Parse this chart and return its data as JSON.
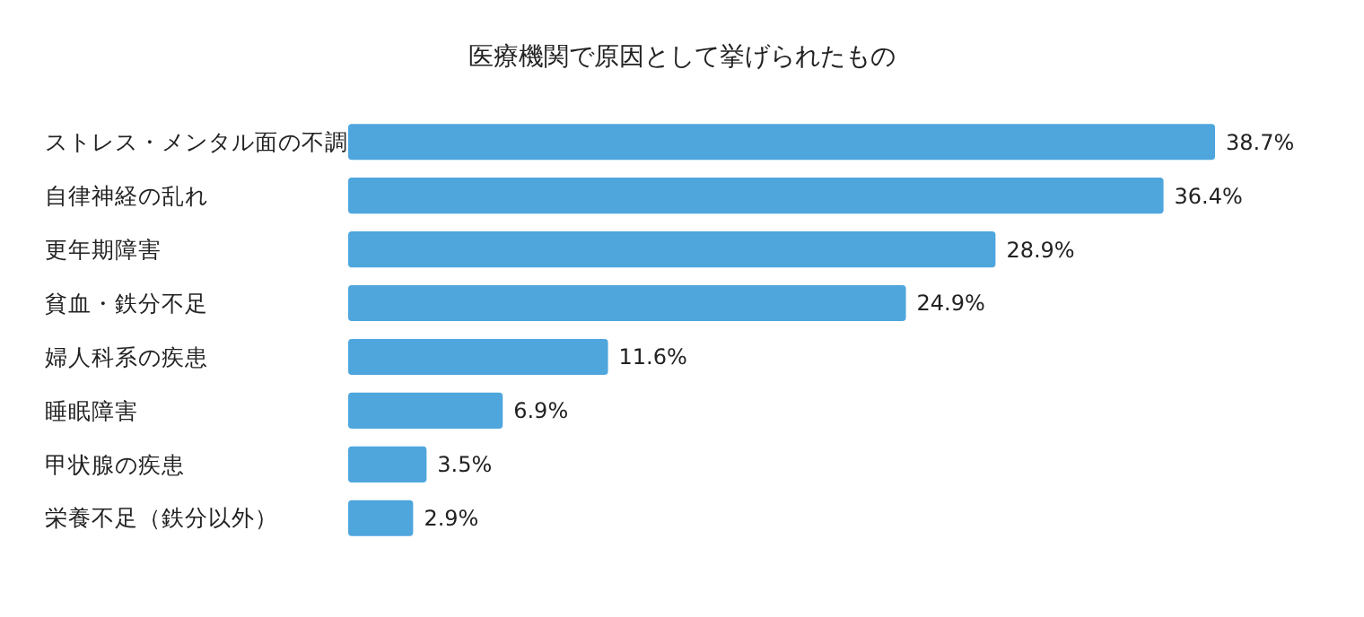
{
  "chart_data": {
    "type": "bar",
    "orientation": "horizontal",
    "title": "医療機関で原因として挙げられたもの",
    "categories": [
      "ストレス・メンタル面の不調",
      "自律神経の乱れ",
      "更年期障害",
      "貧血・鉄分不足",
      "婦人科系の疾患",
      "睡眠障害",
      "甲状腺の疾患",
      "栄養不足（鉄分以外）"
    ],
    "values": [
      38.7,
      36.4,
      28.9,
      24.9,
      11.6,
      6.9,
      3.5,
      2.9
    ],
    "value_labels": [
      "38.7%",
      "36.4%",
      "28.9%",
      "24.9%",
      "11.6%",
      "6.9%",
      "3.5%",
      "2.9%"
    ],
    "color": "#4ea6dd"
  }
}
